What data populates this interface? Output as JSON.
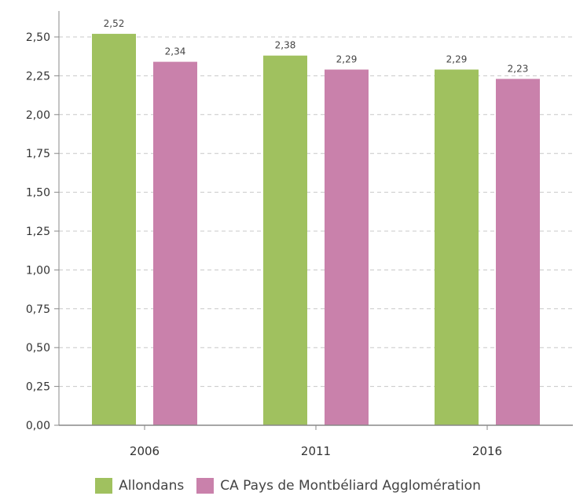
{
  "chart_data": {
    "type": "bar",
    "categories": [
      "2006",
      "2011",
      "2016"
    ],
    "series": [
      {
        "name": "Allondans",
        "values": [
          2.52,
          2.38,
          2.29
        ],
        "labels": [
          "2,52",
          "2,38",
          "2,29"
        ],
        "color": "#a0c15f"
      },
      {
        "name": "CA Pays de Montbéliard Agglomération",
        "values": [
          2.34,
          2.29,
          2.23
        ],
        "labels": [
          "2,34",
          "2,29",
          "2,23"
        ],
        "color": "#c981ab"
      }
    ],
    "ylim": [
      0,
      2.5
    ],
    "yticks": [
      0,
      0.25,
      0.5,
      0.75,
      1.0,
      1.25,
      1.5,
      1.75,
      2.0,
      2.25,
      2.5
    ],
    "ytick_labels": [
      "0,00",
      "0,25",
      "0,50",
      "0,75",
      "1,00",
      "1,25",
      "1,50",
      "1,75",
      "2,00",
      "2,25",
      "2,50"
    ],
    "grid": true,
    "legend_position": "bottom"
  }
}
